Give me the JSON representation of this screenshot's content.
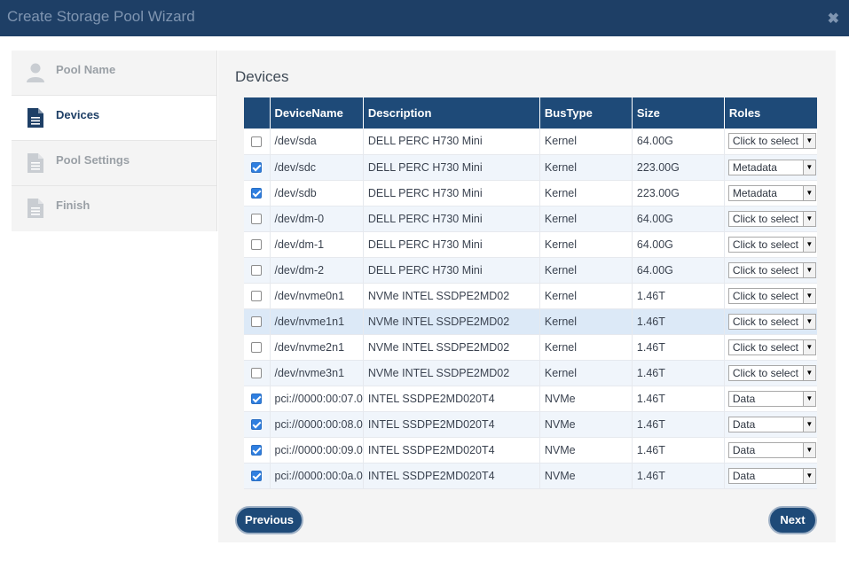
{
  "window": {
    "title": "Create Storage Pool Wizard",
    "close_glyph": "✖"
  },
  "steps": [
    {
      "label": "Pool Name",
      "icon": "user-icon",
      "active": false
    },
    {
      "label": "Devices",
      "icon": "document-icon",
      "active": true
    },
    {
      "label": "Pool Settings",
      "icon": "document-icon",
      "active": false
    },
    {
      "label": "Finish",
      "icon": "document-icon",
      "active": false
    }
  ],
  "main": {
    "heading": "Devices",
    "columns": [
      "DeviceName",
      "Description",
      "BusType",
      "Size",
      "Roles"
    ],
    "rows": [
      {
        "checked": false,
        "device": "/dev/sda",
        "description": "DELL PERC H730 Mini",
        "bus": "Kernel",
        "size": "64.00G",
        "role": "Click to select"
      },
      {
        "checked": true,
        "device": "/dev/sdc",
        "description": "DELL PERC H730 Mini",
        "bus": "Kernel",
        "size": "223.00G",
        "role": "Metadata"
      },
      {
        "checked": true,
        "device": "/dev/sdb",
        "description": "DELL PERC H730 Mini",
        "bus": "Kernel",
        "size": "223.00G",
        "role": "Metadata"
      },
      {
        "checked": false,
        "device": "/dev/dm-0",
        "description": "DELL PERC H730 Mini",
        "bus": "Kernel",
        "size": "64.00G",
        "role": "Click to select"
      },
      {
        "checked": false,
        "device": "/dev/dm-1",
        "description": "DELL PERC H730 Mini",
        "bus": "Kernel",
        "size": "64.00G",
        "role": "Click to select"
      },
      {
        "checked": false,
        "device": "/dev/dm-2",
        "description": "DELL PERC H730 Mini",
        "bus": "Kernel",
        "size": "64.00G",
        "role": "Click to select"
      },
      {
        "checked": false,
        "device": "/dev/nvme0n1",
        "description": "NVMe INTEL SSDPE2MD02",
        "bus": "Kernel",
        "size": "1.46T",
        "role": "Click to select"
      },
      {
        "checked": false,
        "device": "/dev/nvme1n1",
        "description": "NVMe INTEL SSDPE2MD02",
        "bus": "Kernel",
        "size": "1.46T",
        "role": "Click to select",
        "highlight": true
      },
      {
        "checked": false,
        "device": "/dev/nvme2n1",
        "description": "NVMe INTEL SSDPE2MD02",
        "bus": "Kernel",
        "size": "1.46T",
        "role": "Click to select"
      },
      {
        "checked": false,
        "device": "/dev/nvme3n1",
        "description": "NVMe INTEL SSDPE2MD02",
        "bus": "Kernel",
        "size": "1.46T",
        "role": "Click to select"
      },
      {
        "checked": true,
        "device": "pci://0000:00:07.0",
        "description": "INTEL SSDPE2MD020T4",
        "bus": "NVMe",
        "size": "1.46T",
        "role": "Data"
      },
      {
        "checked": true,
        "device": "pci://0000:00:08.0",
        "description": "INTEL SSDPE2MD020T4",
        "bus": "NVMe",
        "size": "1.46T",
        "role": "Data"
      },
      {
        "checked": true,
        "device": "pci://0000:00:09.0",
        "description": "INTEL SSDPE2MD020T4",
        "bus": "NVMe",
        "size": "1.46T",
        "role": "Data"
      },
      {
        "checked": true,
        "device": "pci://0000:00:0a.0",
        "description": "INTEL SSDPE2MD020T4",
        "bus": "NVMe",
        "size": "1.46T",
        "role": "Data"
      }
    ]
  },
  "buttons": {
    "previous": "Previous",
    "next": "Next"
  },
  "colors": {
    "header": "#1e3f66",
    "table_header": "#1e4a78",
    "active_step": "#1e3f66",
    "checkbox_on": "#2f7fe0"
  }
}
